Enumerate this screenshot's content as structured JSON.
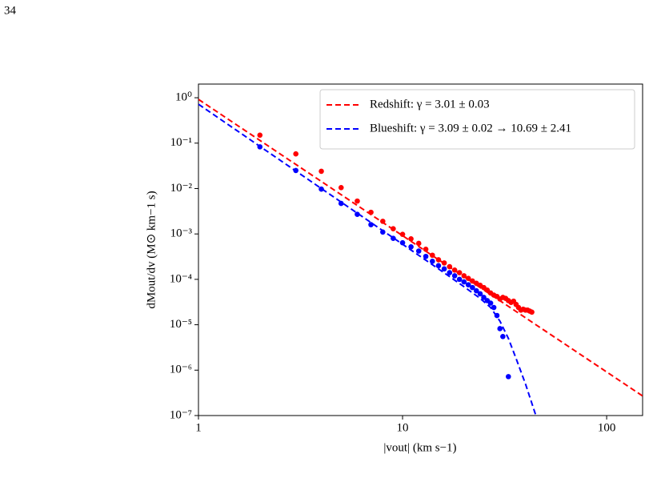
{
  "page_number": "34",
  "chart_data": {
    "type": "scatter",
    "xlabel": "|vout| (km s−1)",
    "ylabel": "dMout/dv (M⊙ km−1 s)",
    "xscale": "log",
    "yscale": "log",
    "xlim": [
      1,
      150
    ],
    "ylim": [
      1e-07,
      2
    ],
    "xticks": [
      1,
      10,
      100
    ],
    "yticks": [
      {
        "value": 1,
        "label": "10⁰"
      },
      {
        "value": 0.1,
        "label": "10⁻¹"
      },
      {
        "value": 0.01,
        "label": "10⁻²"
      },
      {
        "value": 0.001,
        "label": "10⁻³"
      },
      {
        "value": 0.0001,
        "label": "10⁻⁴"
      },
      {
        "value": 1e-05,
        "label": "10⁻⁵"
      },
      {
        "value": 1e-06,
        "label": "10⁻⁶"
      },
      {
        "value": 1e-07,
        "label": "10⁻⁷"
      }
    ],
    "legend": "upper right",
    "series": [
      {
        "name": "Redshift: γ = 3.01 ± 0.03",
        "color": "#ff0000",
        "style": "dashed",
        "x": [
          1,
          150
        ],
        "values": [
          0.92,
          2.7e-07
        ]
      },
      {
        "name": "Blueshift: γ = 3.09 ± 0.02 → 10.69 ± 2.41",
        "color": "#0000ff",
        "style": "dashed",
        "x": [
          1,
          15,
          20,
          24,
          27,
          30,
          33,
          36,
          40,
          45
        ],
        "values": [
          0.72,
          0.00017,
          6.9e-05,
          3.8e-05,
          2.4e-05,
          1.2e-05,
          5e-06,
          1.8e-06,
          5e-07,
          1e-07
        ]
      },
      {
        "color": "#ff0000",
        "style": "points",
        "x": [
          2,
          3,
          4,
          5,
          6,
          7,
          8,
          9,
          10,
          11,
          12,
          13,
          14,
          15,
          16,
          17,
          18,
          19,
          20,
          21,
          22,
          23,
          24,
          25,
          26,
          27,
          28,
          29,
          30,
          31,
          32,
          33,
          34,
          35,
          36,
          37,
          38,
          39,
          40,
          41,
          42,
          43
        ],
        "values": [
          0.15,
          0.058,
          0.024,
          0.0105,
          0.0053,
          0.003,
          0.0019,
          0.0013,
          0.00098,
          0.00078,
          0.00062,
          0.00046,
          0.00034,
          0.00027,
          0.00023,
          0.00019,
          0.00016,
          0.00014,
          0.00012,
          0.000105,
          9.2e-05,
          8.2e-05,
          7.4e-05,
          6.6e-05,
          5.8e-05,
          5e-05,
          4.5e-05,
          4.2e-05,
          3.7e-05,
          4e-05,
          3.8e-05,
          3.4e-05,
          3.1e-05,
          3.3e-05,
          2.8e-05,
          2.4e-05,
          2.1e-05,
          2.2e-05,
          2.1e-05,
          2.1e-05,
          2e-05,
          1.9e-05
        ]
      },
      {
        "color": "#0000ff",
        "style": "points",
        "x": [
          2,
          3,
          4,
          5,
          6,
          7,
          8,
          9,
          10,
          11,
          12,
          13,
          14,
          15,
          16,
          17,
          18,
          19,
          20,
          21,
          22,
          23,
          24,
          25,
          26,
          27,
          28,
          29,
          30,
          31,
          33
        ],
        "values": [
          0.083,
          0.025,
          0.0097,
          0.0047,
          0.0027,
          0.0016,
          0.0011,
          0.0008,
          0.00064,
          0.00052,
          0.00042,
          0.00032,
          0.00025,
          0.0002,
          0.00017,
          0.00014,
          0.00012,
          0.0001,
          8.8e-05,
          7.6e-05,
          6.6e-05,
          5.6e-05,
          4.8e-05,
          4e-05,
          3.4e-05,
          3e-05,
          2.4e-05,
          1.6e-05,
          8.2e-06,
          5.5e-06,
          7.2e-07
        ]
      }
    ]
  }
}
